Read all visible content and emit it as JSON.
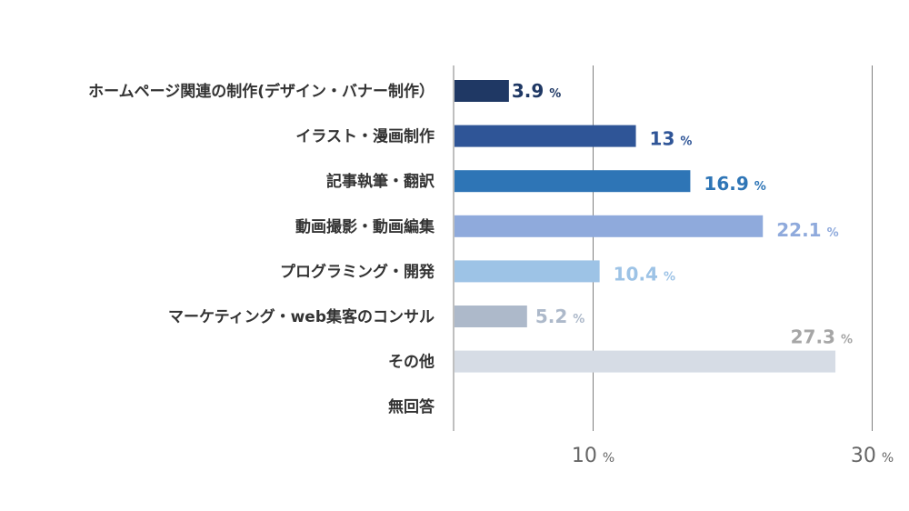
{
  "chart_data": {
    "type": "bar",
    "orientation": "horizontal",
    "categories": [
      "ホームページ関連の制作(デザイン・バナー制作）",
      "イラスト・漫画制作",
      "記事執筆・翻訳",
      "動画撮影・動画編集",
      "プログラミング・開発",
      "マーケティング・web集客のコンサル",
      "その他",
      "無回答"
    ],
    "values": [
      3.9,
      13,
      16.9,
      22.1,
      10.4,
      5.2,
      27.3,
      null
    ],
    "value_labels": [
      "3.9",
      "13",
      "16.9",
      "22.1",
      "10.4",
      "5.2",
      "27.3",
      ""
    ],
    "value_unit": "%",
    "colors": [
      "#1f3864",
      "#2f5597",
      "#2e75b6",
      "#8faadc",
      "#9dc3e6",
      "#adb9ca",
      "#d6dce5",
      "#ffffff"
    ],
    "label_colors": [
      "#1f3864",
      "#2f5597",
      "#2e75b6",
      "#8faadc",
      "#9dc3e6",
      "#adb9ca",
      "#a6a6a6",
      "#ffffff"
    ],
    "xlim": [
      0,
      30
    ],
    "ticks": [
      {
        "value": 10,
        "label": "10",
        "unit": "%"
      },
      {
        "value": 30,
        "label": "30",
        "unit": "%"
      }
    ],
    "grid": true,
    "title": "",
    "xlabel": "",
    "ylabel": ""
  }
}
